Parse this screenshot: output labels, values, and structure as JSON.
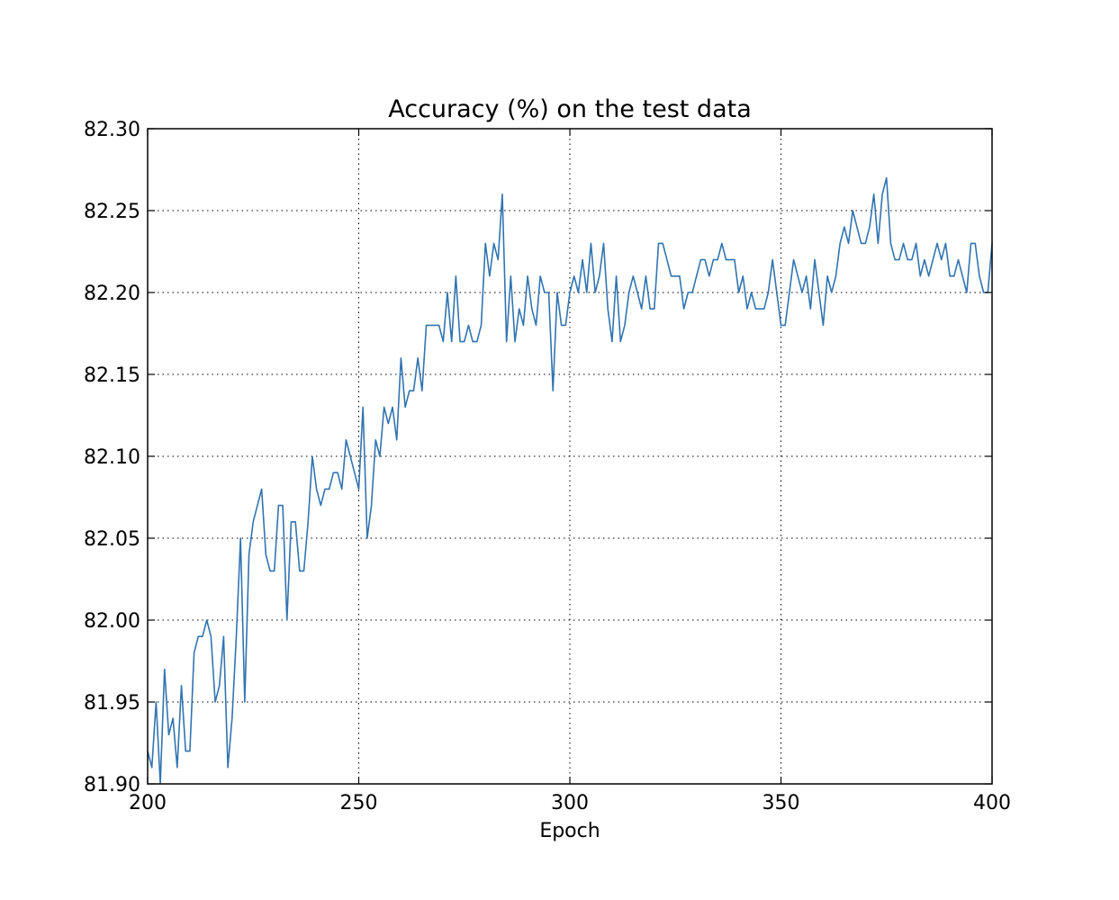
{
  "chart_data": {
    "type": "line",
    "title": "Accuracy (%) on the test data",
    "xlabel": "Epoch",
    "ylabel": "",
    "xlim": [
      200,
      400
    ],
    "ylim": [
      81.9,
      82.3
    ],
    "xticks": [
      200,
      250,
      300,
      350,
      400
    ],
    "xtick_labels": [
      "200",
      "250",
      "300",
      "350",
      "400"
    ],
    "yticks": [
      81.9,
      81.95,
      82.0,
      82.05,
      82.1,
      82.15,
      82.2,
      82.25,
      82.3
    ],
    "ytick_labels": [
      "81.90",
      "81.95",
      "82.00",
      "82.05",
      "82.10",
      "82.15",
      "82.20",
      "82.25",
      "82.30"
    ],
    "grid": true,
    "legend": "none",
    "series_color": "#3274b0",
    "series": [
      {
        "x": [
          200,
          201,
          202,
          203,
          204,
          205,
          206,
          207,
          208,
          209,
          210,
          211,
          212,
          213,
          214,
          215,
          216,
          217,
          218,
          219,
          220,
          221,
          222,
          223,
          224,
          225,
          226,
          227,
          228,
          229,
          230,
          231,
          232,
          233,
          234,
          235,
          236,
          237,
          238,
          239,
          240,
          241,
          242,
          243,
          244,
          245,
          246,
          247,
          248,
          249,
          250,
          251,
          252,
          253,
          254,
          255,
          256,
          257,
          258,
          259,
          260,
          261,
          262,
          263,
          264,
          265,
          266,
          267,
          268,
          269,
          270,
          271,
          272,
          273,
          274,
          275,
          276,
          277,
          278,
          279,
          280,
          281,
          282,
          283,
          284,
          285,
          286,
          287,
          288,
          289,
          290,
          291,
          292,
          293,
          294,
          295,
          296,
          297,
          298,
          299,
          300,
          301,
          302,
          303,
          304,
          305,
          306,
          307,
          308,
          309,
          310,
          311,
          312,
          313,
          314,
          315,
          316,
          317,
          318,
          319,
          320,
          321,
          322,
          323,
          324,
          325,
          326,
          327,
          328,
          329,
          330,
          331,
          332,
          333,
          334,
          335,
          336,
          337,
          338,
          339,
          340,
          341,
          342,
          343,
          344,
          345,
          346,
          347,
          348,
          349,
          350,
          351,
          352,
          353,
          354,
          355,
          356,
          357,
          358,
          359,
          360,
          361,
          362,
          363,
          364,
          365,
          366,
          367,
          368,
          369,
          370,
          371,
          372,
          373,
          374,
          375,
          376,
          377,
          378,
          379,
          380,
          381,
          382,
          383,
          384,
          385,
          386,
          387,
          388,
          389,
          390,
          391,
          392,
          393,
          394,
          395,
          396,
          397,
          398,
          399,
          400
        ],
        "values": [
          81.92,
          81.91,
          81.95,
          81.9,
          81.97,
          81.93,
          81.94,
          81.91,
          81.96,
          81.92,
          81.92,
          81.98,
          81.99,
          81.99,
          82.0,
          81.99,
          81.95,
          81.96,
          81.99,
          81.91,
          81.94,
          81.99,
          82.05,
          81.95,
          82.04,
          82.06,
          82.07,
          82.08,
          82.04,
          82.03,
          82.03,
          82.07,
          82.07,
          82.0,
          82.06,
          82.06,
          82.03,
          82.03,
          82.06,
          82.1,
          82.08,
          82.07,
          82.08,
          82.08,
          82.09,
          82.09,
          82.08,
          82.11,
          82.1,
          82.09,
          82.08,
          82.13,
          82.05,
          82.07,
          82.11,
          82.1,
          82.13,
          82.12,
          82.13,
          82.11,
          82.16,
          82.13,
          82.14,
          82.14,
          82.16,
          82.14,
          82.18,
          82.18,
          82.18,
          82.18,
          82.17,
          82.2,
          82.17,
          82.21,
          82.17,
          82.17,
          82.18,
          82.17,
          82.17,
          82.18,
          82.23,
          82.21,
          82.23,
          82.22,
          82.26,
          82.17,
          82.21,
          82.17,
          82.19,
          82.18,
          82.21,
          82.19,
          82.18,
          82.21,
          82.2,
          82.2,
          82.14,
          82.2,
          82.18,
          82.18,
          82.2,
          82.21,
          82.2,
          82.22,
          82.2,
          82.23,
          82.2,
          82.21,
          82.23,
          82.19,
          82.17,
          82.21,
          82.17,
          82.18,
          82.2,
          82.21,
          82.2,
          82.19,
          82.21,
          82.19,
          82.19,
          82.23,
          82.23,
          82.22,
          82.21,
          82.21,
          82.21,
          82.19,
          82.2,
          82.2,
          82.21,
          82.22,
          82.22,
          82.21,
          82.22,
          82.22,
          82.23,
          82.22,
          82.22,
          82.22,
          82.2,
          82.21,
          82.19,
          82.2,
          82.19,
          82.19,
          82.19,
          82.2,
          82.22,
          82.2,
          82.18,
          82.18,
          82.2,
          82.22,
          82.21,
          82.2,
          82.21,
          82.19,
          82.22,
          82.2,
          82.18,
          82.21,
          82.2,
          82.21,
          82.23,
          82.24,
          82.23,
          82.25,
          82.24,
          82.23,
          82.23,
          82.24,
          82.26,
          82.23,
          82.26,
          82.27,
          82.23,
          82.22,
          82.22,
          82.23,
          82.22,
          82.22,
          82.23,
          82.21,
          82.22,
          82.21,
          82.22,
          82.23,
          82.22,
          82.23,
          82.21,
          82.21,
          82.22,
          82.21,
          82.2,
          82.23,
          82.23,
          82.21,
          82.2,
          82.2,
          82.23
        ]
      }
    ]
  }
}
